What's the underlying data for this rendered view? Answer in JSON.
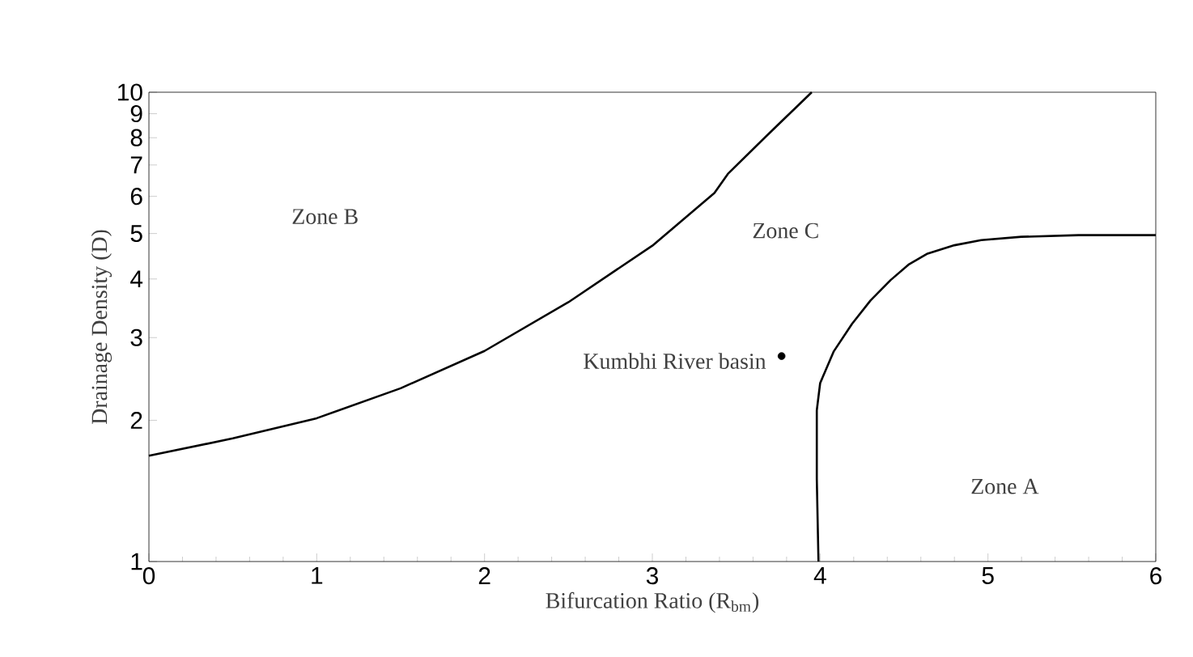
{
  "chart_data": {
    "type": "line",
    "xlabel": "Bifurcation Ratio (R$_{bm}$)",
    "ylabel": "Drainage Density (D)",
    "log": "y",
    "xlim": [
      0,
      6
    ],
    "xticks": [
      0,
      1,
      2,
      3,
      4,
      5,
      6
    ],
    "ylim": [
      1,
      10
    ],
    "yticks": [
      1,
      2,
      3,
      4,
      5,
      6,
      7,
      8,
      9,
      10
    ],
    "series": [
      {
        "color": "#000000",
        "marker": "none",
        "x": [
          0,
          0.5,
          1,
          1.5,
          2,
          2.5,
          3,
          3.37,
          3.45,
          3.7,
          3.95
        ],
        "values": [
          1.68,
          1.83,
          2.02,
          2.34,
          2.81,
          3.57,
          4.71,
          6.1,
          6.7,
          8.2,
          10
        ]
      },
      {
        "color": "#000000",
        "marker": "none",
        "x": [
          3.99,
          3.98,
          3.98,
          4.0,
          4.08,
          4.19,
          4.3,
          4.42,
          4.53,
          4.64,
          4.8,
          4.96,
          5.2,
          5.54,
          6.0
        ],
        "values": [
          1,
          1.5,
          2.1,
          2.4,
          2.8,
          3.21,
          3.6,
          3.98,
          4.3,
          4.53,
          4.72,
          4.84,
          4.92,
          4.96,
          4.96
        ]
      },
      {
        "type": "scatter",
        "color": "#000000",
        "marker": "circle",
        "x": [
          3.77
        ],
        "values": [
          2.74
        ]
      }
    ],
    "annotations": [
      "Zone B",
      "Zone C",
      {
        "text": "Kumbhi River basin",
        "x": 3.77,
        "y": 2.74
      },
      "Zone A"
    ]
  }
}
